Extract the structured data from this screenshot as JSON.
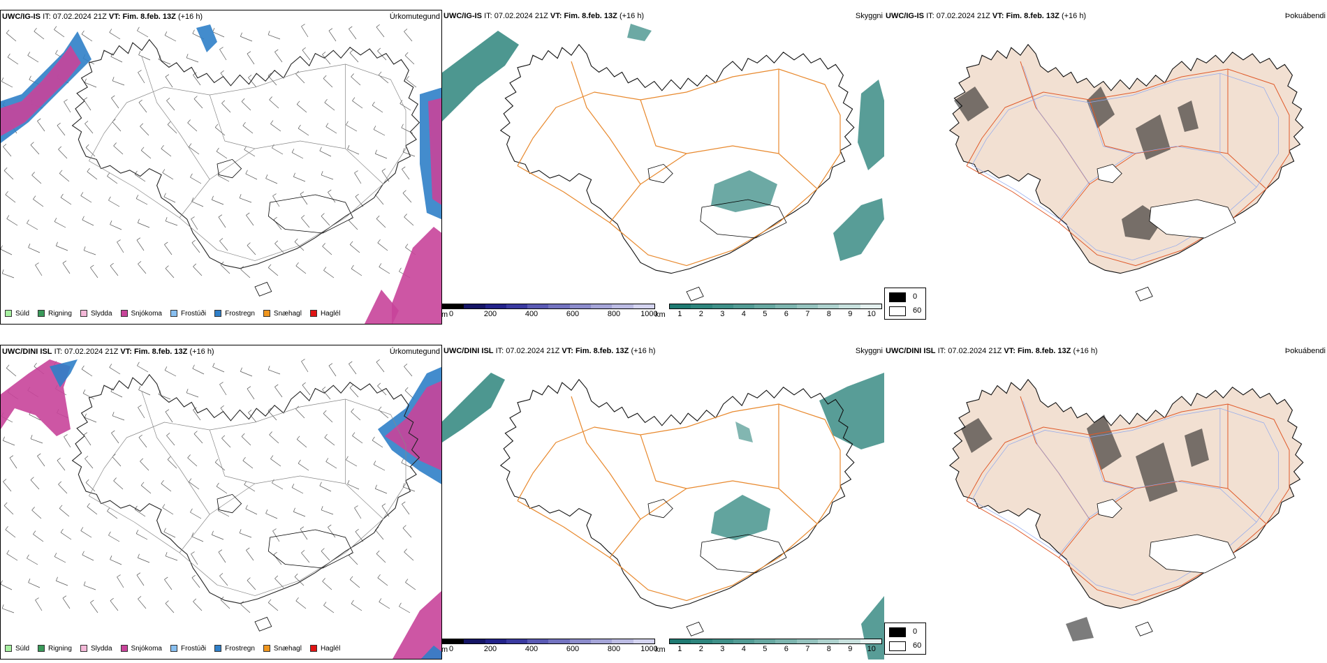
{
  "rows": [
    {
      "precip_panel": {
        "title_model": "UWC/IG-IS",
        "title_it_label": "IT:",
        "title_it": "07.02.2024 21Z",
        "title_vt_label": "VT:",
        "title_vt": "Fim. 8.feb. 13Z",
        "title_lead": "(+16 h)",
        "right_label": "Úrkomutegund"
      },
      "vis_panel": {
        "title_model": "UWC/IG-IS",
        "title_it_label": "IT:",
        "title_it": "07.02.2024 21Z",
        "title_vt_label": "VT:",
        "title_vt": "Fim. 8.feb. 13Z",
        "title_lead": "(+16 h)",
        "right_label": "Skyggni"
      },
      "fog_panel": {
        "title_model": "UWC/IG-IS",
        "title_it_label": "IT:",
        "title_it": "07.02.2024 21Z",
        "title_vt_label": "VT:",
        "title_vt": "Fim. 8.feb. 13Z",
        "title_lead": "(+16 h)",
        "right_label": "Þokuábendi"
      }
    },
    {
      "precip_panel": {
        "title_model": "UWC/DINI ISL",
        "title_it_label": "IT:",
        "title_it": "07.02.2024 21Z",
        "title_vt_label": "VT:",
        "title_vt": "Fim. 8.feb. 13Z",
        "title_lead": "(+16 h)",
        "right_label": "Úrkomutegund"
      },
      "vis_panel": {
        "title_model": "UWC/DINI ISL",
        "title_it_label": "IT:",
        "title_it": "07.02.2024 21Z",
        "title_vt_label": "VT:",
        "title_vt": "Fim. 8.feb. 13Z",
        "title_lead": "(+16 h)",
        "right_label": "Skyggni"
      },
      "fog_panel": {
        "title_model": "UWC/DINI ISL",
        "title_it_label": "IT:",
        "title_it": "07.02.2024 21Z",
        "title_vt_label": "VT:",
        "title_vt": "Fim. 8.feb. 13Z",
        "title_lead": "(+16 h)",
        "right_label": "Þokuábendi"
      }
    }
  ],
  "precip_legend": [
    {
      "label": "Súld",
      "color": "#a6f0a0"
    },
    {
      "label": "Rigning",
      "color": "#3a9a5a"
    },
    {
      "label": "Slydda",
      "color": "#f4b8d8"
    },
    {
      "label": "Snjókoma",
      "color": "#c8449a"
    },
    {
      "label": "Frostúði",
      "color": "#88bff0"
    },
    {
      "label": "Frostregn",
      "color": "#2f7fc8"
    },
    {
      "label": "Snæhagl",
      "color": "#f0961e"
    },
    {
      "label": "Haglél",
      "color": "#e01414"
    }
  ],
  "elevation_colorbar": {
    "unit": "m",
    "ticks": [
      "0",
      "200",
      "400",
      "600",
      "800",
      "1000"
    ],
    "colors": [
      "#000000",
      "#151565",
      "#23238a",
      "#3a3aa0",
      "#5a5ab4",
      "#7373c0",
      "#8c8ccc",
      "#a5a5d8",
      "#bcbce4",
      "#d4d4f0"
    ]
  },
  "visibility_colorbar": {
    "unit": "km",
    "ticks": [
      "1",
      "2",
      "3",
      "4",
      "5",
      "6",
      "7",
      "8",
      "9",
      "10"
    ],
    "colors": [
      "#1f7a72",
      "#2e857d",
      "#3f9088",
      "#529b94",
      "#67a8a1",
      "#7db5af",
      "#95c3be",
      "#aed2ce",
      "#c8e1de",
      "#e4f0ef"
    ]
  },
  "fog_legend": {
    "items": [
      {
        "label": "0",
        "color": "#000000"
      },
      {
        "label": "60",
        "color": "#ffffff"
      }
    ]
  },
  "colors": {
    "coast": "#000000",
    "roads_vis": "#e8892e",
    "roads_fog": "#e05a2a",
    "rivers_fog": "#8fa8ee",
    "land_fog": "#f2e0d2",
    "snow": "#c8449a",
    "freezing_rain": "#2f7fc8",
    "visibility_low": "#2e857d"
  }
}
